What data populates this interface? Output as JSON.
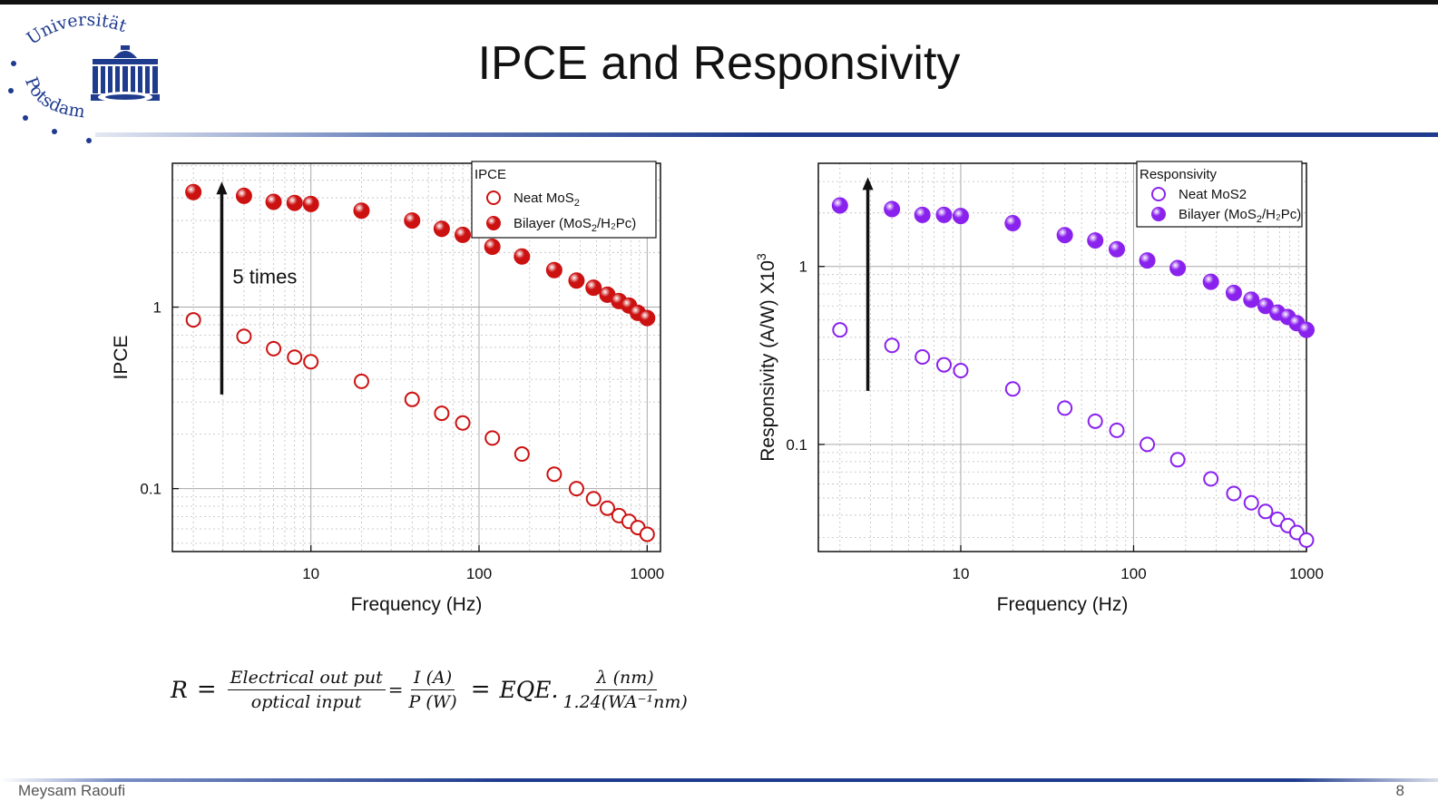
{
  "slide": {
    "title": "IPCE and Responsivity",
    "author": "Meysam Raoufi",
    "page_number": "8",
    "logo_text": "Universität Potsdam",
    "colors": {
      "title_rule": "#1f3b8e",
      "logo": "#1f3b8e"
    }
  },
  "formula": {
    "lhs": "R",
    "eq1": "=",
    "frac1_num": "Electrical out put",
    "frac1_den": "optical input",
    "eq2": "=",
    "frac2_num": "I (A)",
    "frac2_den": "P (W)",
    "eq3": "=",
    "term": "EQE.",
    "frac3_num": "λ (nm)",
    "frac3_den": "1.24(WA⁻¹nm)"
  },
  "chart_data": [
    {
      "type": "scatter",
      "x_scale": "log",
      "y_scale": "log",
      "xlabel": "Frequency (Hz)",
      "ylabel": "IPCE",
      "xlim": [
        1.5,
        1200
      ],
      "ylim": [
        0.045,
        6.2
      ],
      "x_ticks": [
        10,
        100,
        1000
      ],
      "x_tick_labels": [
        "10",
        "100",
        "1000"
      ],
      "y_ticks": [
        0.1,
        1
      ],
      "y_tick_labels": [
        "0.1",
        "1"
      ],
      "grid": true,
      "legend": {
        "title": "IPCE",
        "placement": "top-right"
      },
      "annotation": {
        "text": "5 times",
        "arrow_from_y": 0.33,
        "arrow_to_y": 4.8,
        "arrow_x": 2.95
      },
      "series": [
        {
          "name": "Neat MoS2",
          "label_main": "Neat MoS",
          "label_sub": "2",
          "label_tail": "",
          "marker": "open",
          "color": "#cc1111",
          "x": [
            2,
            4,
            6,
            8,
            10,
            20,
            40,
            60,
            80,
            120,
            180,
            280,
            380,
            480,
            580,
            680,
            780,
            880,
            1000
          ],
          "y": [
            0.85,
            0.69,
            0.59,
            0.53,
            0.5,
            0.39,
            0.31,
            0.26,
            0.23,
            0.19,
            0.155,
            0.12,
            0.1,
            0.088,
            0.078,
            0.071,
            0.066,
            0.061,
            0.056
          ]
        },
        {
          "name": "Bilayer (MoS2/H2Pc)",
          "label_main": "Bilayer (MoS",
          "label_sub": "2",
          "label_tail": "/H₂Pc)",
          "marker": "filled",
          "color": "#cc1111",
          "x": [
            2,
            4,
            6,
            8,
            10,
            20,
            40,
            60,
            80,
            120,
            180,
            280,
            380,
            480,
            580,
            680,
            780,
            880,
            1000
          ],
          "y": [
            4.3,
            4.1,
            3.8,
            3.75,
            3.7,
            3.4,
            3.0,
            2.7,
            2.5,
            2.15,
            1.9,
            1.6,
            1.4,
            1.28,
            1.17,
            1.08,
            1.02,
            0.93,
            0.87
          ]
        }
      ]
    },
    {
      "type": "scatter",
      "x_scale": "log",
      "y_scale": "log",
      "xlabel": "Frequency (Hz)",
      "ylabel": "Responsivity (A/W) X10",
      "ylabel_sup": "3",
      "xlim": [
        1.5,
        1000
      ],
      "ylim": [
        0.025,
        3.8
      ],
      "x_ticks": [
        10,
        100,
        1000
      ],
      "x_tick_labels": [
        "10",
        "100",
        "1000"
      ],
      "y_ticks": [
        0.1,
        1
      ],
      "y_tick_labels": [
        "0.1",
        "1"
      ],
      "grid": true,
      "legend": {
        "title": "Responsivity",
        "placement": "top-right"
      },
      "annotation": {
        "text": "",
        "arrow_from_y": 0.2,
        "arrow_to_y": 3.1,
        "arrow_x": 2.9
      },
      "series": [
        {
          "name": "Neat MoS2",
          "label_main": "Neat MoS2",
          "label_sub": "",
          "label_tail": "",
          "marker": "open",
          "color": "#8a22ee",
          "x": [
            2,
            4,
            6,
            8,
            10,
            20,
            40,
            60,
            80,
            120,
            180,
            280,
            380,
            480,
            580,
            680,
            780,
            880,
            1000
          ],
          "y": [
            0.44,
            0.36,
            0.31,
            0.28,
            0.26,
            0.205,
            0.16,
            0.135,
            0.12,
            0.1,
            0.082,
            0.064,
            0.053,
            0.047,
            0.042,
            0.038,
            0.035,
            0.032,
            0.029
          ]
        },
        {
          "name": "Bilayer (MoS2/H2Pc)",
          "label_main": "Bilayer (MoS",
          "label_sub": "2",
          "label_tail": "/H₂Pc)",
          "marker": "filled",
          "color": "#8a22ee",
          "x": [
            2,
            4,
            6,
            8,
            10,
            20,
            40,
            60,
            80,
            120,
            180,
            280,
            380,
            480,
            580,
            680,
            780,
            880,
            1000
          ],
          "y": [
            2.2,
            2.1,
            1.95,
            1.95,
            1.92,
            1.75,
            1.5,
            1.4,
            1.25,
            1.08,
            0.98,
            0.82,
            0.71,
            0.65,
            0.6,
            0.55,
            0.52,
            0.48,
            0.44
          ]
        }
      ]
    }
  ]
}
